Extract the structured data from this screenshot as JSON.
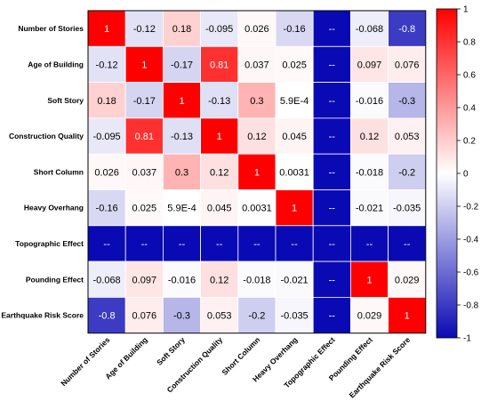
{
  "chart_data": {
    "type": "heatmap",
    "title": "",
    "variables": [
      "Number of Stories",
      "Age of Building",
      "Soft Story",
      "Construction Quality",
      "Short Column",
      "Heavy Overhang",
      "Topographic Effect",
      "Pounding Effect",
      "Earthquake Risk Score"
    ],
    "labels": [
      [
        "1",
        "-0.12",
        "0.18",
        "-0.095",
        "0.026",
        "-0.16",
        "--",
        "-0.068",
        "-0.8"
      ],
      [
        "-0.12",
        "1",
        "-0.17",
        "0.81",
        "0.037",
        "0.025",
        "--",
        "0.097",
        "0.076"
      ],
      [
        "0.18",
        "-0.17",
        "1",
        "-0.13",
        "0.3",
        "5.9E-4",
        "--",
        "-0.016",
        "-0.3"
      ],
      [
        "-0.095",
        "0.81",
        "-0.13",
        "1",
        "0.12",
        "0.045",
        "--",
        "0.12",
        "0.053"
      ],
      [
        "0.026",
        "0.037",
        "0.3",
        "0.12",
        "1",
        "0.0031",
        "--",
        "-0.018",
        "-0.2"
      ],
      [
        "-0.16",
        "0.025",
        "5.9E-4",
        "0.045",
        "0.0031",
        "1",
        "--",
        "-0.021",
        "-0.035"
      ],
      [
        "--",
        "--",
        "--",
        "--",
        "--",
        "--",
        "--",
        "--",
        "--"
      ],
      [
        "-0.068",
        "0.097",
        "-0.016",
        "0.12",
        "-0.018",
        "-0.021",
        "--",
        "1",
        "0.029"
      ],
      [
        "-0.8",
        "0.076",
        "-0.3",
        "0.053",
        "-0.2",
        "-0.035",
        "--",
        "0.029",
        "1"
      ]
    ],
    "values": [
      [
        1,
        -0.12,
        0.18,
        -0.095,
        0.026,
        -0.16,
        null,
        -0.068,
        -0.8
      ],
      [
        -0.12,
        1,
        -0.17,
        0.81,
        0.037,
        0.025,
        null,
        0.097,
        0.076
      ],
      [
        0.18,
        -0.17,
        1,
        -0.13,
        0.3,
        0.00059,
        null,
        -0.016,
        -0.3
      ],
      [
        -0.095,
        0.81,
        -0.13,
        1,
        0.12,
        0.045,
        null,
        0.12,
        0.053
      ],
      [
        0.026,
        0.037,
        0.3,
        0.12,
        1,
        0.0031,
        null,
        -0.018,
        -0.2
      ],
      [
        -0.16,
        0.025,
        0.00059,
        0.045,
        0.0031,
        1,
        null,
        -0.021,
        -0.035
      ],
      [
        null,
        null,
        null,
        null,
        null,
        null,
        null,
        null,
        null
      ],
      [
        -0.068,
        0.097,
        -0.016,
        0.12,
        -0.018,
        -0.021,
        null,
        1,
        0.029
      ],
      [
        -0.8,
        0.076,
        -0.3,
        0.053,
        -0.2,
        -0.035,
        null,
        0.029,
        1
      ]
    ],
    "undefined_cell_color": "#0a0ab4",
    "colormap": {
      "low_color": "#0a0ab4",
      "mid_color": "#ffffff",
      "high_color": "#ff0000",
      "range": [
        -1,
        1
      ]
    },
    "colorbar_ticks": [
      "1",
      "0.8",
      "0.6",
      "0.4",
      "0.2",
      "0",
      "-0.2",
      "-0.4",
      "-0.6",
      "-0.8",
      "-1"
    ],
    "legend_position": "right",
    "grid": true
  }
}
